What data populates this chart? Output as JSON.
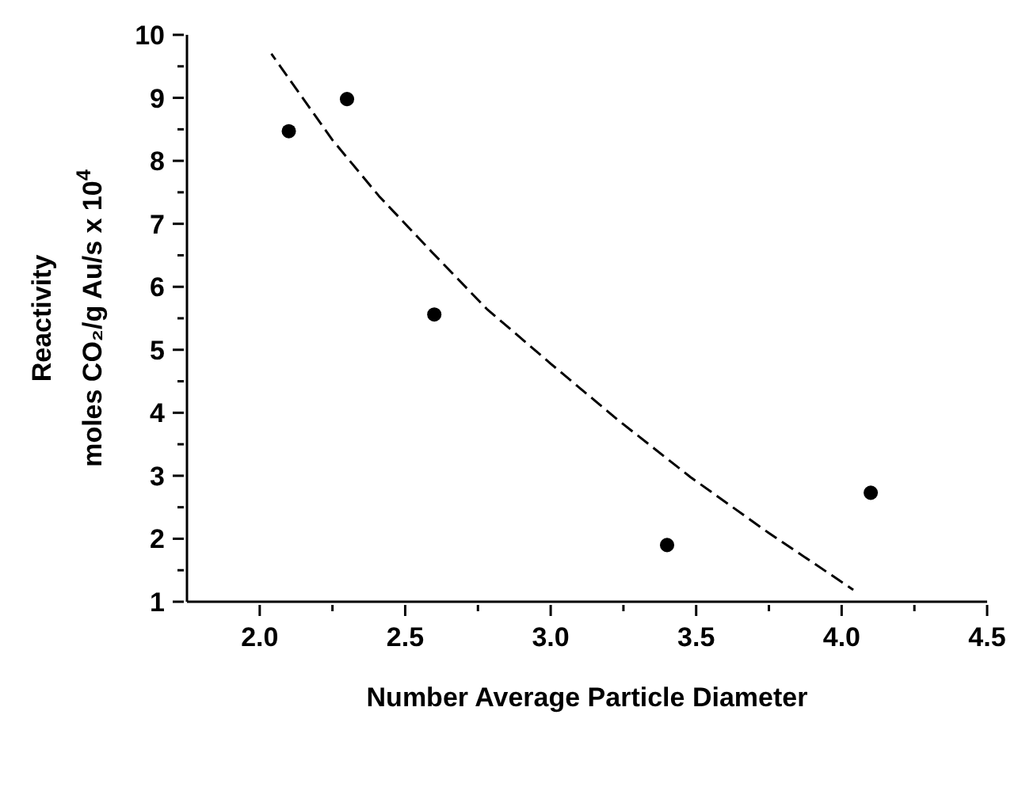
{
  "chart_data": {
    "type": "scatter",
    "xlabel": "Number Average Particle Diameter",
    "ylabel": "Reactivity\nmoles CO₂/g Au/s x 10$^{4}$",
    "xlim": [
      1.75,
      4.5
    ],
    "xticks": [
      {
        "value": 2.0,
        "label": "2.0"
      },
      {
        "value": 2.25,
        "label": null
      },
      {
        "value": 2.5,
        "label": "2.5"
      },
      {
        "value": 2.75,
        "label": null
      },
      {
        "value": 3.0,
        "label": "3.0"
      },
      {
        "value": 3.25,
        "label": null
      },
      {
        "value": 3.5,
        "label": "3.5"
      },
      {
        "value": 3.75,
        "label": null
      },
      {
        "value": 4.0,
        "label": "4.0"
      },
      {
        "value": 4.25,
        "label": null
      },
      {
        "value": 4.5,
        "label": "4.5"
      }
    ],
    "ylim": [
      1,
      10
    ],
    "yticks": [
      1,
      {
        "value": 1.5,
        "label": null
      },
      2,
      {
        "value": 2.5,
        "label": null
      },
      3,
      {
        "value": 3.5,
        "label": null
      },
      4,
      {
        "value": 4.5,
        "label": null
      },
      5,
      {
        "value": 5.5,
        "label": null
      },
      6,
      {
        "value": 6.5,
        "label": null
      },
      7,
      {
        "value": 7.5,
        "label": null
      },
      8,
      {
        "value": 8.5,
        "label": null
      },
      9,
      {
        "value": 9.5,
        "label": null
      },
      10
    ],
    "grid": false,
    "marker": "circle",
    "series": [
      {
        "color": "#000000",
        "x": [
          2.1,
          2.3,
          2.6,
          3.4,
          4.1
        ],
        "values": [
          8.47,
          8.98,
          5.56,
          1.9,
          2.73
        ]
      },
      {
        "type": "line",
        "color": "#000000",
        "line_style": "dashed",
        "marker": "none",
        "x": [
          2.04,
          2.25,
          2.41,
          2.59,
          2.78,
          3.0,
          3.23,
          3.48,
          3.75,
          4.04
        ],
        "values": [
          9.7,
          8.33,
          7.44,
          6.56,
          5.65,
          4.78,
          3.89,
          2.98,
          2.09,
          1.19
        ]
      }
    ]
  }
}
